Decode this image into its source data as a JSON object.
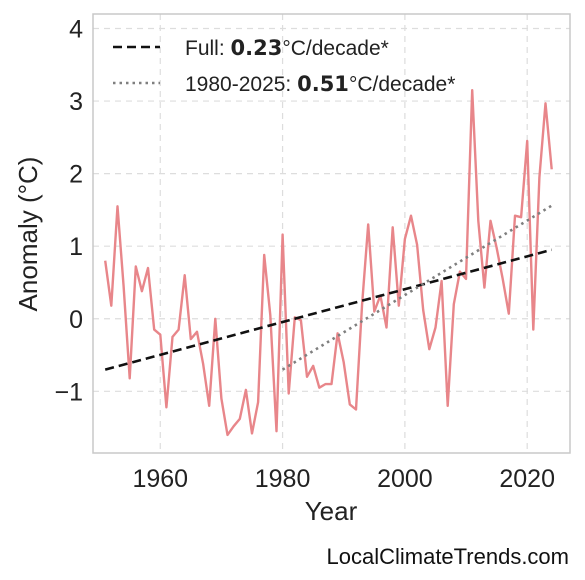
{
  "chart_data": {
    "type": "line",
    "title": "",
    "xlabel": "Year",
    "ylabel": "Anomaly (°C)",
    "xlim": [
      1949,
      2027
    ],
    "ylim": [
      -1.85,
      4.2
    ],
    "x_ticks": [
      1960,
      1980,
      2000,
      2020
    ],
    "y_ticks": [
      {
        "value": -1,
        "label": "−1"
      },
      {
        "value": 0,
        "label": "0"
      },
      {
        "value": 1,
        "label": "1"
      },
      {
        "value": 2,
        "label": "2"
      },
      {
        "value": 3,
        "label": "3"
      },
      {
        "value": 4,
        "label": "4"
      }
    ],
    "grid": true,
    "legend_position": "top-left",
    "series": [
      {
        "type": "line",
        "color": "#e8868a",
        "x": [
          1951,
          1952,
          1953,
          1954,
          1955,
          1956,
          1957,
          1958,
          1959,
          1960,
          1961,
          1962,
          1963,
          1964,
          1965,
          1966,
          1967,
          1968,
          1969,
          1970,
          1971,
          1972,
          1973,
          1974,
          1975,
          1976,
          1977,
          1978,
          1979,
          1980,
          1981,
          1982,
          1983,
          1984,
          1985,
          1986,
          1987,
          1988,
          1989,
          1990,
          1991,
          1992,
          1993,
          1994,
          1995,
          1996,
          1997,
          1998,
          1999,
          2000,
          2001,
          2002,
          2003,
          2004,
          2005,
          2006,
          2007,
          2008,
          2009,
          2010,
          2011,
          2012,
          2013,
          2014,
          2015,
          2016,
          2017,
          2018,
          2019,
          2020,
          2021,
          2022,
          2023,
          2024
        ],
        "values": [
          0.8,
          0.18,
          1.55,
          0.45,
          -0.82,
          0.72,
          0.38,
          0.7,
          -0.15,
          -0.22,
          -1.22,
          -0.25,
          -0.15,
          0.6,
          -0.28,
          -0.18,
          -0.62,
          -1.2,
          0.0,
          -1.1,
          -1.6,
          -1.48,
          -1.38,
          -0.98,
          -1.58,
          -1.15,
          0.88,
          0.05,
          -1.55,
          1.16,
          -1.03,
          0.02,
          -0.02,
          -0.8,
          -0.65,
          -0.95,
          -0.9,
          -0.9,
          -0.2,
          -0.6,
          -1.18,
          -1.25,
          0.2,
          1.3,
          0.1,
          0.32,
          -0.12,
          1.26,
          0.18,
          1.1,
          1.42,
          1.02,
          0.12,
          -0.42,
          -0.12,
          0.52,
          -1.2,
          0.2,
          0.65,
          0.55,
          3.15,
          1.35,
          0.43,
          1.35,
          0.98,
          0.55,
          0.07,
          1.42,
          1.4,
          2.45,
          -0.15,
          1.95,
          2.97,
          2.06
        ]
      },
      {
        "type": "trend",
        "name": "Full",
        "rate": "0.23",
        "unit": "°C/decade*",
        "style": "dashed",
        "color": "#111111",
        "x": [
          1951,
          2024
        ],
        "values": [
          -0.7,
          0.95
        ]
      },
      {
        "type": "trend",
        "name": "1980-2025",
        "rate": "0.51",
        "unit": "°C/decade*",
        "style": "dotted",
        "color": "#7f7f7f",
        "x": [
          1980,
          2024
        ],
        "values": [
          -0.7,
          1.56
        ]
      }
    ]
  },
  "credit": "LocalClimateTrends.com"
}
